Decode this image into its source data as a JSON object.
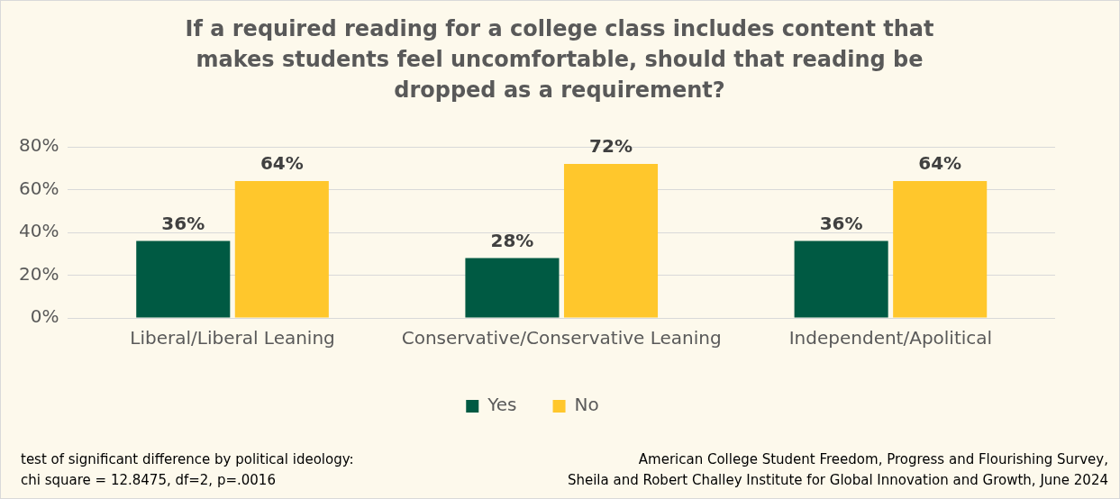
{
  "chart_data": {
    "type": "bar",
    "title": "If a required reading for a college class includes content that makes students feel uncomfortable, should that reading be dropped as a requirement?",
    "categories": [
      "Liberal/Liberal Leaning",
      "Conservative/Conservative Leaning",
      "Independent/Apolitical"
    ],
    "series": [
      {
        "name": "Yes",
        "color": "#005a43",
        "values": [
          36,
          28,
          36
        ],
        "value_labels": [
          "36%",
          "28%",
          "36%"
        ]
      },
      {
        "name": "No",
        "color": "#ffc72c",
        "values": [
          64,
          72,
          64
        ],
        "value_labels": [
          "64%",
          "72%",
          "64%"
        ]
      }
    ],
    "ylim": [
      0,
      80
    ],
    "yticks": [
      {
        "value": 0,
        "label": "0%"
      },
      {
        "value": 20,
        "label": "20%"
      },
      {
        "value": 40,
        "label": "40%"
      },
      {
        "value": 60,
        "label": "60%"
      },
      {
        "value": 80,
        "label": "80%"
      }
    ],
    "grid": "y",
    "legend": "bottom",
    "annotations": [
      "test of significant difference by political ideology:\nchi square = 12.8475, df=2, p=.0016",
      "American College Student Freedom, Progress and Flourishing Survey,\nSheila and Robert Challey Institute for Global Innovation and Growth, June 2024"
    ]
  }
}
